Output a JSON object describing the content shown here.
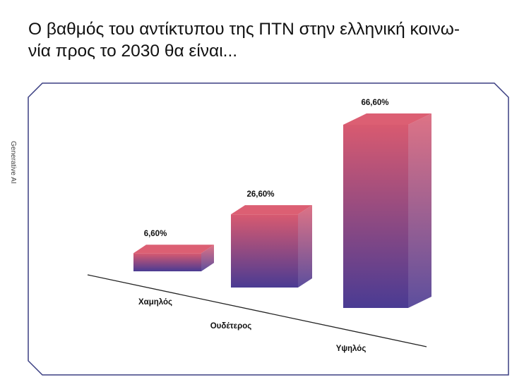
{
  "page": {
    "title_line1": "Ο βαθμός του αντίκτυπου της ΠΤΝ στην ελληνική κοινω-",
    "title_line2": "νία προς το 2030 θα είναι...",
    "side_label": "Generative AI"
  },
  "colors": {
    "panel_border": "#3b3f82",
    "bar_top": "#dc5f73",
    "bar_front_top": "#d85a70",
    "bar_front_bottom": "#4a3b93",
    "baseline": "#222222"
  },
  "chart_data": {
    "type": "bar",
    "categories": [
      "Χαμηλός",
      "Ουδέτερος",
      "Υψηλός"
    ],
    "values": [
      6.6,
      26.6,
      66.6
    ],
    "value_labels": [
      "6,60%",
      "26,60%",
      "66,60%"
    ],
    "unit": "%",
    "ylim": [
      0,
      70
    ],
    "title": "",
    "xlabel": "",
    "ylabel": "",
    "grid": false,
    "legend": "none",
    "style": "3d"
  }
}
